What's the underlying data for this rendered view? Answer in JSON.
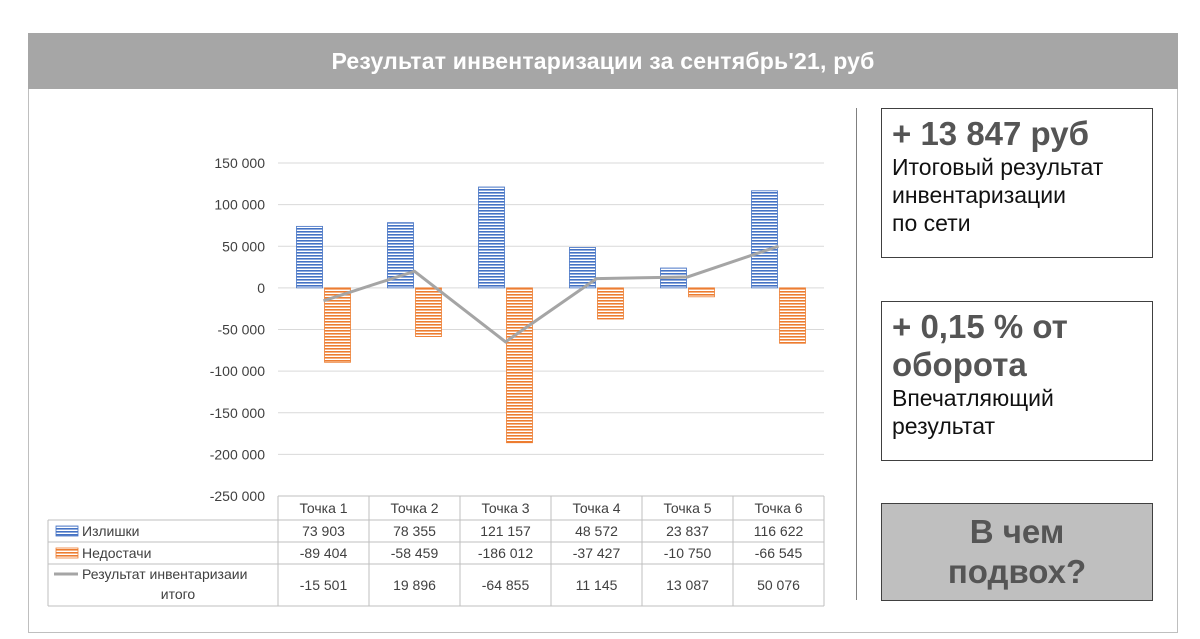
{
  "title": "Результат инвентаризации за сентябрь'21, руб",
  "chart_data": {
    "type": "bar",
    "categories": [
      "Точка 1",
      "Точка 2",
      "Точка 3",
      "Точка 4",
      "Точка 5",
      "Точка 6"
    ],
    "series": [
      {
        "name": "Излишки",
        "type": "bar",
        "color": "#4472c4",
        "values": [
          73903,
          78355,
          121157,
          48572,
          23837,
          116622
        ],
        "labels": [
          "73 903",
          "78 355",
          "121 157",
          "48 572",
          "23 837",
          "116 622"
        ]
      },
      {
        "name": "Недостачи",
        "type": "bar",
        "color": "#ed7d31",
        "values": [
          -89404,
          -58459,
          -186012,
          -37427,
          -10750,
          -66545
        ],
        "labels": [
          "-89 404",
          "-58 459",
          "-186 012",
          "-37 427",
          "-10 750",
          "-66 545"
        ]
      },
      {
        "name": "Результат инвентаризаии итого",
        "type": "line",
        "color": "#a5a5a5",
        "values": [
          -15501,
          19896,
          -64855,
          11145,
          13087,
          50076
        ],
        "labels": [
          "-15 501",
          "19 896",
          "-64 855",
          "11 145",
          "13 087",
          "50 076"
        ]
      }
    ],
    "ylim": [
      -250000,
      150000
    ],
    "yticks": [
      150000,
      100000,
      50000,
      0,
      -50000,
      -100000,
      -150000,
      -200000,
      -250000
    ],
    "ytick_labels": [
      "150 000",
      "100 000",
      "50 000",
      "0",
      "-50 000",
      "-100 000",
      "-150 000",
      "-200 000",
      "-250 000"
    ],
    "grid": true,
    "legend": "data-table"
  },
  "summary": {
    "box1_big": "+ 13 847 руб",
    "box1_lines": [
      "Итоговый результат",
      "инвентаризации",
      "по сети"
    ],
    "box2_big_lines": [
      "+ 0,15 % от",
      "оборота"
    ],
    "box2_lines": [
      "Впечатляющий",
      "результат"
    ]
  },
  "button": {
    "lines": [
      "В чем",
      "подвох?"
    ]
  }
}
